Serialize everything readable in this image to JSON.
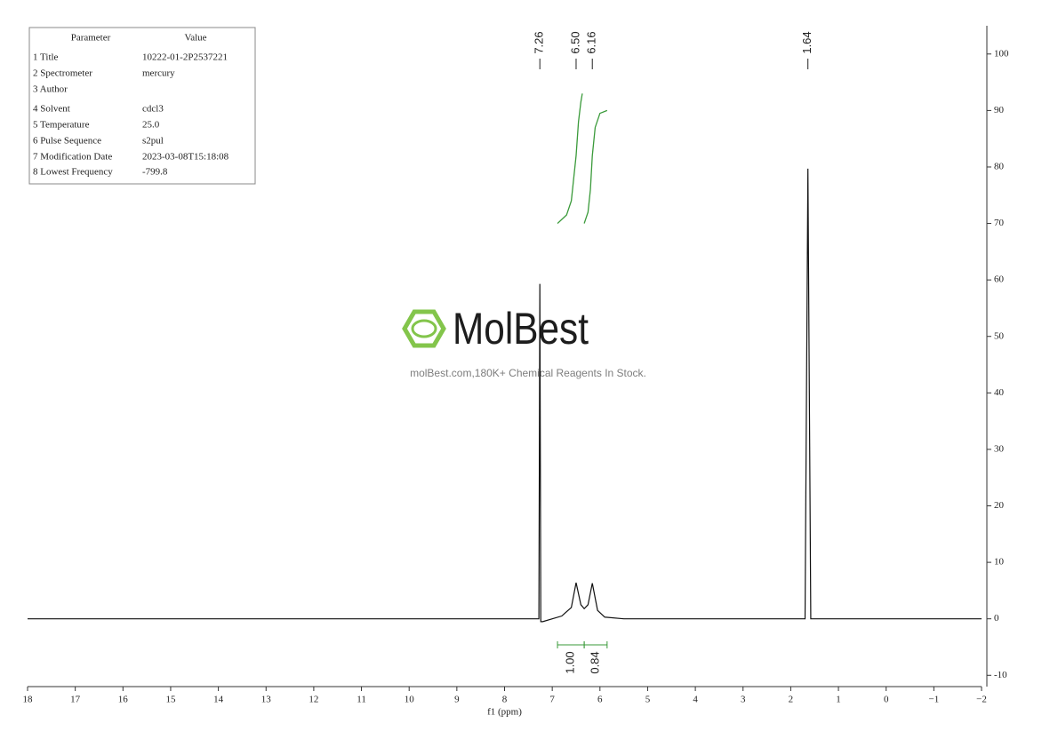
{
  "parameter_table": {
    "header": [
      "Parameter",
      "Value"
    ],
    "rows": [
      [
        "1 Title",
        "10222-01-2P2537221"
      ],
      [
        "2 Spectrometer",
        "mercury"
      ],
      [
        "3 Author"
      ],
      [
        "4 Solvent",
        "cdcl3"
      ],
      [
        "5 Temperature",
        "25.0"
      ],
      [
        "6 Pulse Sequence",
        "s2pul"
      ],
      [
        "7 Modification Date",
        "2023-03-08T15:18:08"
      ],
      [
        "8 Lowest Frequency",
        "-799.8"
      ]
    ]
  },
  "watermark": {
    "brand": "MolBest",
    "tagline": "molBest.com,180K+ Chemical Reagents In Stock."
  },
  "chart_data": {
    "type": "line",
    "x_label": "f1 (ppm)",
    "x": [
      18,
      7.4,
      7.28,
      7.26,
      7.24,
      7.2,
      6.8,
      6.6,
      6.5,
      6.4,
      6.33,
      6.25,
      6.16,
      6.05,
      5.9,
      5.5,
      1.7,
      1.64,
      1.58,
      -2
    ],
    "series": [
      {
        "color": "#111111",
        "values": [
          0,
          0,
          0,
          59.3,
          -0.5,
          -0.5,
          0.5,
          2,
          6.4,
          2.5,
          1.8,
          2.5,
          6.3,
          1.5,
          0.3,
          0,
          0,
          79.7,
          0,
          0
        ]
      }
    ],
    "xlim": [
      18,
      -2
    ],
    "ylim": [
      -12,
      105
    ],
    "xticks": [
      18,
      17,
      16,
      15,
      14,
      13,
      12,
      11,
      10,
      9,
      8,
      7,
      6,
      5,
      4,
      3,
      2,
      1,
      0,
      {
        "value": -1,
        "label": "−1"
      },
      {
        "value": -2,
        "label": "−2"
      }
    ],
    "yticks": [
      -10,
      0,
      10,
      20,
      30,
      40,
      50,
      60,
      70,
      80,
      90,
      100
    ],
    "peaks": [
      7.26,
      {
        "value": 6.5,
        "label": "6.50"
      },
      6.16,
      1.64
    ],
    "integral_color": "#3a9a3a",
    "integrals": [
      {
        "range": [
          6.89,
          6.33
        ],
        "value": 1,
        "label": "1.00",
        "curve_x": [
          6.89,
          6.7,
          6.6,
          6.5,
          6.45,
          6.4,
          6.37
        ],
        "curve_y": [
          70,
          71.5,
          74,
          82,
          88,
          91.5,
          93
        ]
      },
      {
        "range": [
          6.33,
          5.85
        ],
        "value": 0.84,
        "curve_x": [
          6.33,
          6.25,
          6.2,
          6.16,
          6.1,
          6.0,
          5.85
        ],
        "curve_y": [
          70,
          72,
          76,
          82,
          87,
          89.5,
          90
        ]
      }
    ]
  }
}
